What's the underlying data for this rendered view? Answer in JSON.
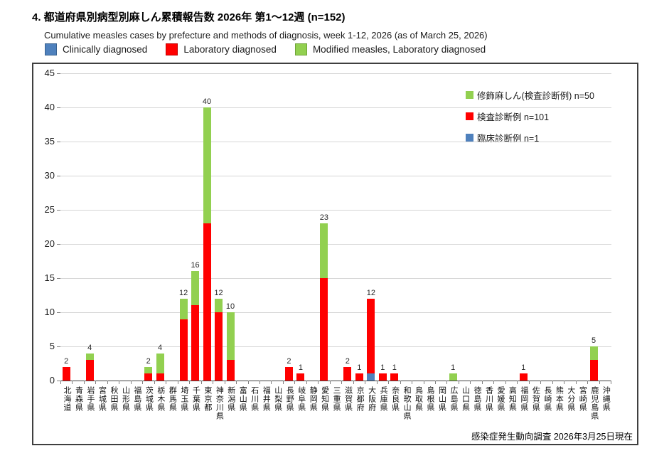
{
  "page": {
    "title": "4. 都道府県別病型別麻しん累積報告数  2026年 第1～12週 (n=152)",
    "subtitle": "Cumulative measles cases by prefecture and methods of diagnosis, week 1-12, 2026 (as of March 25, 2026)",
    "footer": "感染症発生動向調査 2026年3月25日現在"
  },
  "colors": {
    "clinical": "#4F81BD",
    "clinical_border": "#38618F",
    "laboratory": "#FF0000",
    "laboratory_border": "#C00000",
    "modified": "#92D050",
    "modified_border": "#6FA33A",
    "gridline": "#D6D6D6",
    "axis": "#404040"
  },
  "top_legend": [
    {
      "key": "clinical",
      "label": "Clinically diagnosed"
    },
    {
      "key": "laboratory",
      "label": "Laboratory diagnosed"
    },
    {
      "key": "modified",
      "label": "Modified measles, Laboratory diagnosed"
    }
  ],
  "inner_legend": [
    {
      "key": "modified",
      "label": "修飾麻しん(検査診断例) n=50"
    },
    {
      "key": "laboratory",
      "label": "検査診断例 n=101"
    },
    {
      "key": "clinical",
      "label": "臨床診断例 n=1"
    }
  ],
  "chart_data": {
    "type": "bar",
    "stacked": true,
    "title": "都道府県別病型別麻しん累積報告数 2026年 第1～12週 (n=152)",
    "xlabel": "",
    "ylabel": "",
    "ylim": [
      0,
      45
    ],
    "ytick_interval": 5,
    "grid": true,
    "legend_position": "top-right-inside",
    "categories": [
      "北海道",
      "青森県",
      "岩手県",
      "宮城県",
      "秋田県",
      "山形県",
      "福島県",
      "茨城県",
      "栃木県",
      "群馬県",
      "埼玉県",
      "千葉県",
      "東京都",
      "神奈川県",
      "新潟県",
      "富山県",
      "石川県",
      "福井県",
      "山梨県",
      "長野県",
      "岐阜県",
      "静岡県",
      "愛知県",
      "三重県",
      "滋賀県",
      "京都府",
      "大阪府",
      "兵庫県",
      "奈良県",
      "和歌山県",
      "鳥取県",
      "島根県",
      "岡山県",
      "広島県",
      "山口県",
      "徳島県",
      "香川県",
      "愛媛県",
      "高知県",
      "福岡県",
      "佐賀県",
      "長崎県",
      "熊本県",
      "大分県",
      "宮崎県",
      "鹿児島県",
      "沖縄県"
    ],
    "series": [
      {
        "name": "臨床診断例 (Clinically diagnosed) n=1",
        "color_key": "clinical",
        "values": [
          0,
          0,
          0,
          0,
          0,
          0,
          0,
          0,
          0,
          0,
          0,
          0,
          0,
          0,
          0,
          0,
          0,
          0,
          0,
          0,
          0,
          0,
          0,
          0,
          0,
          0,
          1,
          0,
          0,
          0,
          0,
          0,
          0,
          0,
          0,
          0,
          0,
          0,
          0,
          0,
          0,
          0,
          0,
          0,
          0,
          0,
          0
        ]
      },
      {
        "name": "検査診断例 (Laboratory diagnosed) n=101",
        "color_key": "laboratory",
        "values": [
          2,
          0,
          3,
          0,
          0,
          0,
          0,
          1,
          1,
          0,
          9,
          11,
          23,
          10,
          3,
          0,
          0,
          0,
          0,
          2,
          1,
          0,
          15,
          0,
          2,
          1,
          11,
          1,
          1,
          0,
          0,
          0,
          0,
          0,
          0,
          0,
          0,
          0,
          0,
          1,
          0,
          0,
          0,
          0,
          0,
          3,
          0
        ]
      },
      {
        "name": "修飾麻しん(検査診断例) (Modified measles, Laboratory diagnosed) n=50",
        "color_key": "modified",
        "values": [
          0,
          0,
          1,
          0,
          0,
          0,
          0,
          1,
          3,
          0,
          3,
          5,
          17,
          2,
          7,
          0,
          0,
          0,
          0,
          0,
          0,
          0,
          8,
          0,
          0,
          0,
          0,
          0,
          0,
          0,
          0,
          0,
          0,
          1,
          0,
          0,
          0,
          0,
          0,
          0,
          0,
          0,
          0,
          0,
          0,
          2,
          0
        ]
      }
    ],
    "totals": [
      2,
      0,
      4,
      0,
      0,
      0,
      0,
      2,
      4,
      0,
      12,
      16,
      40,
      12,
      10,
      0,
      0,
      0,
      0,
      2,
      1,
      0,
      23,
      0,
      2,
      1,
      12,
      1,
      1,
      0,
      0,
      0,
      0,
      1,
      0,
      0,
      0,
      0,
      0,
      1,
      0,
      0,
      0,
      0,
      0,
      5,
      0
    ]
  }
}
